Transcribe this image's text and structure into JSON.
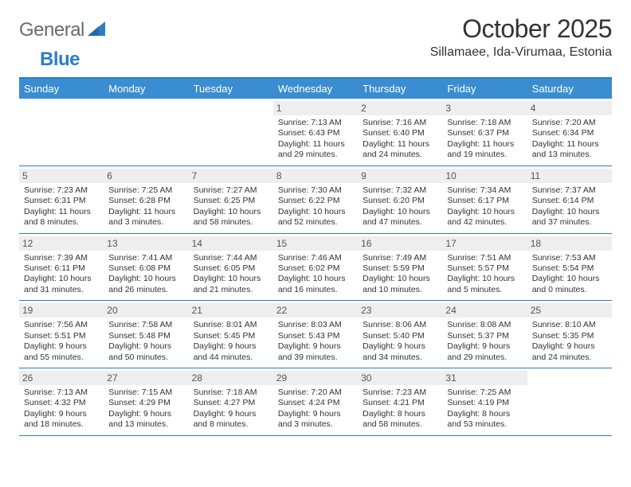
{
  "brand": {
    "text1": "General",
    "text2": "Blue"
  },
  "title": "October 2025",
  "location": "Sillamaee, Ida-Virumaa, Estonia",
  "colors": {
    "header_bg": "#3a8dd0",
    "header_border": "#2a7ec5",
    "daynum_bg": "#eeeeee",
    "text": "#333333",
    "logo_gray": "#6b6b6b",
    "logo_blue": "#2a7ec5"
  },
  "day_names": [
    "Sunday",
    "Monday",
    "Tuesday",
    "Wednesday",
    "Thursday",
    "Friday",
    "Saturday"
  ],
  "weeks": [
    [
      {
        "n": "",
        "sr": "",
        "ss": "",
        "dl": ""
      },
      {
        "n": "",
        "sr": "",
        "ss": "",
        "dl": ""
      },
      {
        "n": "",
        "sr": "",
        "ss": "",
        "dl": ""
      },
      {
        "n": "1",
        "sr": "7:13 AM",
        "ss": "6:43 PM",
        "dl": "11 hours and 29 minutes."
      },
      {
        "n": "2",
        "sr": "7:16 AM",
        "ss": "6:40 PM",
        "dl": "11 hours and 24 minutes."
      },
      {
        "n": "3",
        "sr": "7:18 AM",
        "ss": "6:37 PM",
        "dl": "11 hours and 19 minutes."
      },
      {
        "n": "4",
        "sr": "7:20 AM",
        "ss": "6:34 PM",
        "dl": "11 hours and 13 minutes."
      }
    ],
    [
      {
        "n": "5",
        "sr": "7:23 AM",
        "ss": "6:31 PM",
        "dl": "11 hours and 8 minutes."
      },
      {
        "n": "6",
        "sr": "7:25 AM",
        "ss": "6:28 PM",
        "dl": "11 hours and 3 minutes."
      },
      {
        "n": "7",
        "sr": "7:27 AM",
        "ss": "6:25 PM",
        "dl": "10 hours and 58 minutes."
      },
      {
        "n": "8",
        "sr": "7:30 AM",
        "ss": "6:22 PM",
        "dl": "10 hours and 52 minutes."
      },
      {
        "n": "9",
        "sr": "7:32 AM",
        "ss": "6:20 PM",
        "dl": "10 hours and 47 minutes."
      },
      {
        "n": "10",
        "sr": "7:34 AM",
        "ss": "6:17 PM",
        "dl": "10 hours and 42 minutes."
      },
      {
        "n": "11",
        "sr": "7:37 AM",
        "ss": "6:14 PM",
        "dl": "10 hours and 37 minutes."
      }
    ],
    [
      {
        "n": "12",
        "sr": "7:39 AM",
        "ss": "6:11 PM",
        "dl": "10 hours and 31 minutes."
      },
      {
        "n": "13",
        "sr": "7:41 AM",
        "ss": "6:08 PM",
        "dl": "10 hours and 26 minutes."
      },
      {
        "n": "14",
        "sr": "7:44 AM",
        "ss": "6:05 PM",
        "dl": "10 hours and 21 minutes."
      },
      {
        "n": "15",
        "sr": "7:46 AM",
        "ss": "6:02 PM",
        "dl": "10 hours and 16 minutes."
      },
      {
        "n": "16",
        "sr": "7:49 AM",
        "ss": "5:59 PM",
        "dl": "10 hours and 10 minutes."
      },
      {
        "n": "17",
        "sr": "7:51 AM",
        "ss": "5:57 PM",
        "dl": "10 hours and 5 minutes."
      },
      {
        "n": "18",
        "sr": "7:53 AM",
        "ss": "5:54 PM",
        "dl": "10 hours and 0 minutes."
      }
    ],
    [
      {
        "n": "19",
        "sr": "7:56 AM",
        "ss": "5:51 PM",
        "dl": "9 hours and 55 minutes."
      },
      {
        "n": "20",
        "sr": "7:58 AM",
        "ss": "5:48 PM",
        "dl": "9 hours and 50 minutes."
      },
      {
        "n": "21",
        "sr": "8:01 AM",
        "ss": "5:45 PM",
        "dl": "9 hours and 44 minutes."
      },
      {
        "n": "22",
        "sr": "8:03 AM",
        "ss": "5:43 PM",
        "dl": "9 hours and 39 minutes."
      },
      {
        "n": "23",
        "sr": "8:06 AM",
        "ss": "5:40 PM",
        "dl": "9 hours and 34 minutes."
      },
      {
        "n": "24",
        "sr": "8:08 AM",
        "ss": "5:37 PM",
        "dl": "9 hours and 29 minutes."
      },
      {
        "n": "25",
        "sr": "8:10 AM",
        "ss": "5:35 PM",
        "dl": "9 hours and 24 minutes."
      }
    ],
    [
      {
        "n": "26",
        "sr": "7:13 AM",
        "ss": "4:32 PM",
        "dl": "9 hours and 18 minutes."
      },
      {
        "n": "27",
        "sr": "7:15 AM",
        "ss": "4:29 PM",
        "dl": "9 hours and 13 minutes."
      },
      {
        "n": "28",
        "sr": "7:18 AM",
        "ss": "4:27 PM",
        "dl": "9 hours and 8 minutes."
      },
      {
        "n": "29",
        "sr": "7:20 AM",
        "ss": "4:24 PM",
        "dl": "9 hours and 3 minutes."
      },
      {
        "n": "30",
        "sr": "7:23 AM",
        "ss": "4:21 PM",
        "dl": "8 hours and 58 minutes."
      },
      {
        "n": "31",
        "sr": "7:25 AM",
        "ss": "4:19 PM",
        "dl": "8 hours and 53 minutes."
      },
      {
        "n": "",
        "sr": "",
        "ss": "",
        "dl": ""
      }
    ]
  ],
  "labels": {
    "sunrise": "Sunrise:",
    "sunset": "Sunset:",
    "daylight": "Daylight:"
  }
}
